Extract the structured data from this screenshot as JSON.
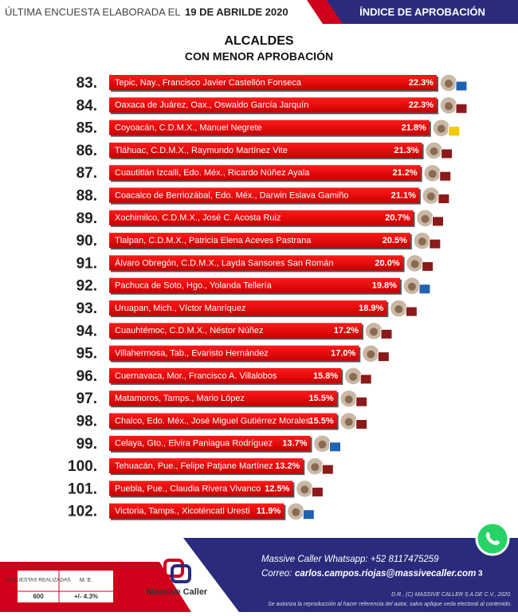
{
  "header": {
    "lead": "ÚLTIMA ENCUESTA ELABORADA EL",
    "date": "19 DE ABRILDE 2020",
    "section": "ÍNDICE DE APROBACIÓN"
  },
  "chart_data": {
    "type": "bar",
    "orientation": "horizontal",
    "title": "ALCALDES",
    "subtitle": "CON MENOR APROBACIÓN",
    "color": "#e8000b",
    "ranks": [
      "83.",
      "84.",
      "85.",
      "86.",
      "87.",
      "88.",
      "89.",
      "90.",
      "91.",
      "92.",
      "93.",
      "94.",
      "95.",
      "96.",
      "97.",
      "98.",
      "99.",
      "100.",
      "101.",
      "102."
    ],
    "categories": [
      "Tepic, Nay., Francisco Javier Castellón Fonseca",
      "Oaxaca de Juárez, Oax., Oswaldo García Jarquín",
      "Coyoacán, C.D.M.X., Manuel Negrete",
      "Tláhuac, C.D.M.X., Raymundo Martínez Vite",
      "Cuautitlán Izcalli, Edo. Méx., Ricardo Núñez Ayala",
      "Coacalco de Berriozábal, Edo. Méx., Darwin Eslava Gamiño",
      "Xochimilco, C.D.M.X., José C. Acosta Ruiz",
      "Tlalpan, C.D.M.X., Patricia Elena Aceves Pastrana",
      "Álvaro Obregón, C.D.M.X., Layda Sansores San Román",
      "Pachuca de Soto, Hgo., Yolanda Tellería",
      "Uruapan, Mich., Víctor Manríquez",
      "Cuauhtémoc, C.D.M.X., Néstor Núñez",
      "Villahermosa, Tab., Evaristo Hernández",
      "Cuernavaca, Mor., Francisco A. Villalobos",
      "Matamoros, Tamps., Mario López",
      "Chalco, Edo. Méx., José Miguel Gutiérrez Morales",
      "Celaya, Gto., Elvira Paniagua Rodríguez",
      "Tehuacán, Pue., Felipe Patjane Martínez",
      "Puebla, Pue., Claudia Rivera Vivanco",
      "Victoria, Tamps., Xicoténcatl Uresti"
    ],
    "values": [
      22.3,
      22.3,
      21.8,
      21.3,
      21.2,
      21.1,
      20.7,
      20.5,
      20.0,
      19.8,
      18.9,
      17.2,
      17.0,
      15.8,
      15.5,
      15.5,
      13.7,
      13.2,
      12.5,
      11.9
    ],
    "value_labels": [
      "22.3%",
      "22.3%",
      "21.8%",
      "21.3%",
      "21.2%",
      "21.1%",
      "20.7%",
      "20.5%",
      "20.0%",
      "19.8%",
      "18.9%",
      "17.2%",
      "17.0%",
      "15.8%",
      "15.5%",
      "15.5%",
      "13.7%",
      "13.2%",
      "12.5%",
      "11.9%"
    ]
  },
  "footer": {
    "surveys_label": "ENCUESTAS REALIZADAS",
    "me_label": "M. E.",
    "surveys": "600",
    "me": "+/- 4.3%",
    "brand": "Massive Caller",
    "whatsapp": "Massive Caller Whatsapp: +52  8117475259",
    "email_label": "Correo:",
    "email": "carlos.campos.riojas@massivecaller.com",
    "page": "3",
    "rights": "D.R., (C) MASSIVE CALLER S.A DE C.V., 2020.",
    "notice": "Se autoriza la reproducción al hacer referencia del autor, salvo aplique veda electoral al contenido."
  }
}
